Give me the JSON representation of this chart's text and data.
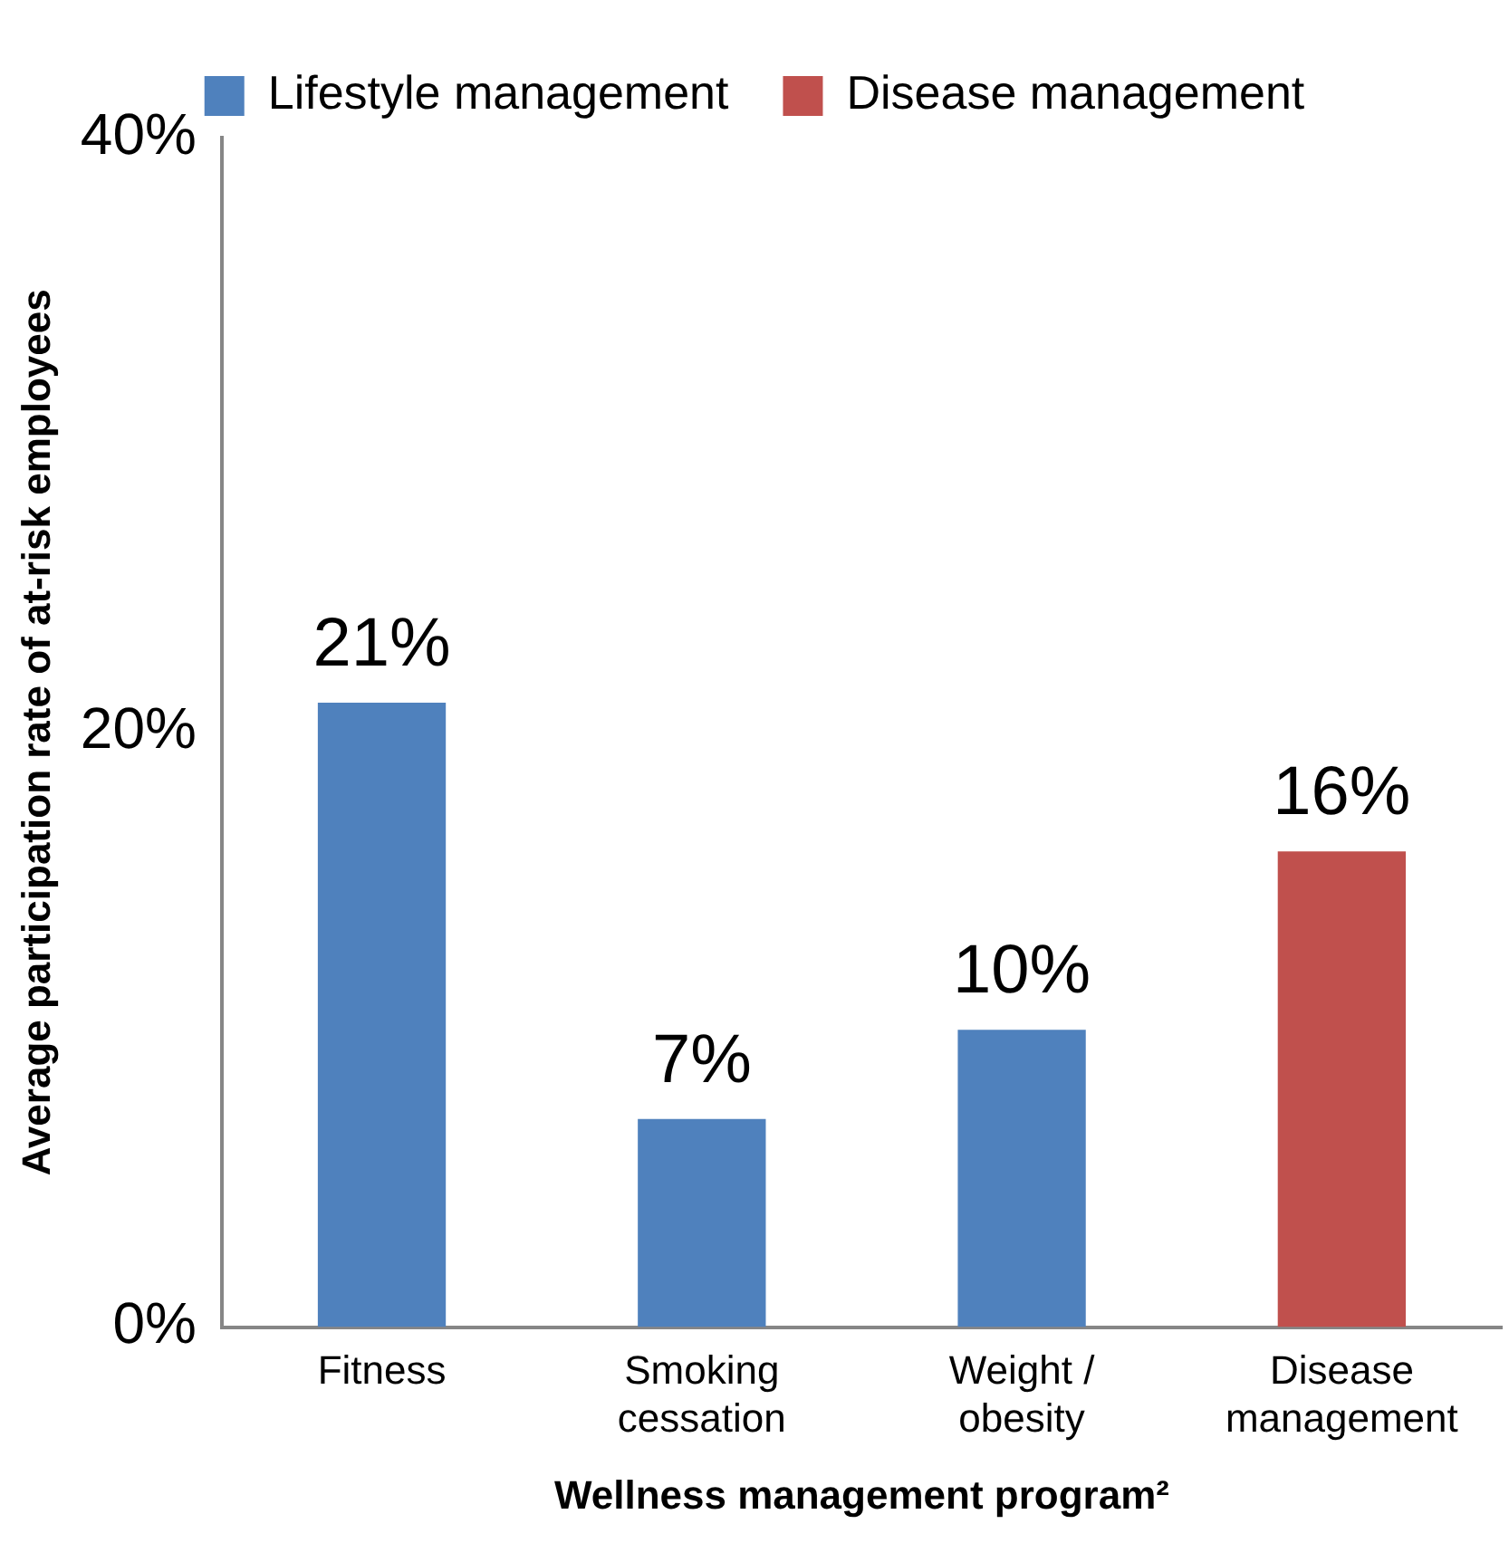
{
  "chart_data": {
    "type": "bar",
    "xlabel": "Wellness management program²",
    "ylabel": "Average participation rate of at-risk employees",
    "categories": [
      "Fitness",
      "Smoking cessation",
      "Weight / obesity",
      "Disease management"
    ],
    "series": [
      {
        "name": "Lifestyle management",
        "color": "#4f81bd",
        "values": [
          21,
          7,
          10,
          null
        ],
        "value_labels": [
          "21%",
          "7%",
          "10%",
          null
        ]
      },
      {
        "name": "Disease management",
        "color": "#c0504d",
        "values": [
          null,
          null,
          null,
          16
        ],
        "value_labels": [
          null,
          null,
          null,
          "16%"
        ]
      }
    ],
    "ylim": [
      0,
      40
    ],
    "yticks": [
      {
        "value": 0,
        "label": "0%"
      },
      {
        "value": 20,
        "label": "20%"
      },
      {
        "value": 40,
        "label": "40%"
      }
    ],
    "legend": "top",
    "grid": false
  }
}
